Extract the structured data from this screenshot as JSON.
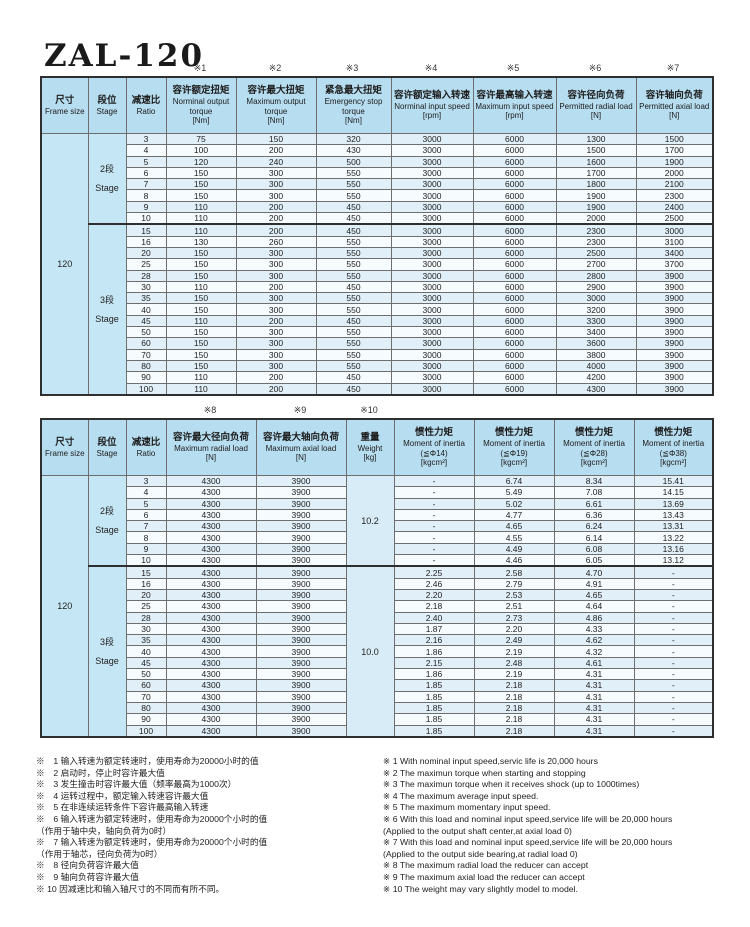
{
  "page": {
    "title": "ZAL-120"
  },
  "colors": {
    "header_bg": "#b7ddf0",
    "merged_bg": "#c5e6f5",
    "weight_bg": "#d8ecf8",
    "band_odd": "#e0eff8",
    "band_even": "#f6fbfe",
    "border": "#2f2f2f"
  },
  "table1": {
    "name": "ratings-table",
    "refs": [
      "※1",
      "※2",
      "※3",
      "※4",
      "※5",
      "※6",
      "※7"
    ],
    "frame_size": "120",
    "columns": [
      {
        "cn": "尺寸",
        "en": "Frame size",
        "unit": ""
      },
      {
        "cn": "段位",
        "en": "Stage",
        "unit": ""
      },
      {
        "cn": "减速比",
        "en": "Ratio",
        "unit": ""
      },
      {
        "cn": "容许额定扭矩",
        "en": "Norminal output torque",
        "unit": "[Nm]"
      },
      {
        "cn": "容许最大扭矩",
        "en": "Maximum output torque",
        "unit": "[Nm]"
      },
      {
        "cn": "紧急最大扭矩",
        "en": "Emergency stop torque",
        "unit": "[Nm]"
      },
      {
        "cn": "容许额定输入转速",
        "en": "Norminal input speed",
        "unit": "[rpm]"
      },
      {
        "cn": "容许最高输入转速",
        "en": "Maximum input speed",
        "unit": "[rpm]"
      },
      {
        "cn": "容许径向负荷",
        "en": "Permitted radial load",
        "unit": "[N]"
      },
      {
        "cn": "容许轴向负荷",
        "en": "Permitted axial load",
        "unit": "[N]"
      }
    ],
    "groups": [
      {
        "stage_cn": "2段",
        "stage_en": "Stage",
        "rows": [
          [
            "3",
            "75",
            "150",
            "320",
            "3000",
            "6000",
            "1300",
            "1500"
          ],
          [
            "4",
            "100",
            "200",
            "430",
            "3000",
            "6000",
            "1500",
            "1700"
          ],
          [
            "5",
            "120",
            "240",
            "500",
            "3000",
            "6000",
            "1600",
            "1900"
          ],
          [
            "6",
            "150",
            "300",
            "550",
            "3000",
            "6000",
            "1700",
            "2000"
          ],
          [
            "7",
            "150",
            "300",
            "550",
            "3000",
            "6000",
            "1800",
            "2100"
          ],
          [
            "8",
            "150",
            "300",
            "550",
            "3000",
            "6000",
            "1900",
            "2300"
          ],
          [
            "9",
            "110",
            "200",
            "450",
            "3000",
            "6000",
            "1900",
            "2400"
          ],
          [
            "10",
            "110",
            "200",
            "450",
            "3000",
            "6000",
            "2000",
            "2500"
          ]
        ]
      },
      {
        "stage_cn": "3段",
        "stage_en": "Stage",
        "rows": [
          [
            "15",
            "110",
            "200",
            "450",
            "3000",
            "6000",
            "2300",
            "3000"
          ],
          [
            "16",
            "130",
            "260",
            "550",
            "3000",
            "6000",
            "2300",
            "3100"
          ],
          [
            "20",
            "150",
            "300",
            "550",
            "3000",
            "6000",
            "2500",
            "3400"
          ],
          [
            "25",
            "150",
            "300",
            "550",
            "3000",
            "6000",
            "2700",
            "3700"
          ],
          [
            "28",
            "150",
            "300",
            "550",
            "3000",
            "6000",
            "2800",
            "3900"
          ],
          [
            "30",
            "110",
            "200",
            "450",
            "3000",
            "6000",
            "2900",
            "3900"
          ],
          [
            "35",
            "150",
            "300",
            "550",
            "3000",
            "6000",
            "3000",
            "3900"
          ],
          [
            "40",
            "150",
            "300",
            "550",
            "3000",
            "6000",
            "3200",
            "3900"
          ],
          [
            "45",
            "110",
            "200",
            "450",
            "3000",
            "6000",
            "3300",
            "3900"
          ],
          [
            "50",
            "150",
            "300",
            "550",
            "3000",
            "6000",
            "3400",
            "3900"
          ],
          [
            "60",
            "150",
            "300",
            "550",
            "3000",
            "6000",
            "3600",
            "3900"
          ],
          [
            "70",
            "150",
            "300",
            "550",
            "3000",
            "6000",
            "3800",
            "3900"
          ],
          [
            "80",
            "150",
            "300",
            "550",
            "3000",
            "6000",
            "4000",
            "3900"
          ],
          [
            "90",
            "110",
            "200",
            "450",
            "3000",
            "6000",
            "4200",
            "3900"
          ],
          [
            "100",
            "110",
            "200",
            "450",
            "3000",
            "6000",
            "4300",
            "3900"
          ]
        ]
      }
    ]
  },
  "table2": {
    "name": "load-weight-inertia-table",
    "refs": [
      "※8",
      "※9",
      "※10"
    ],
    "frame_size": "120",
    "columns": [
      {
        "cn": "尺寸",
        "en": "Frame size",
        "unit": ""
      },
      {
        "cn": "段位",
        "en": "Stage",
        "unit": ""
      },
      {
        "cn": "减速比",
        "en": "Ratio",
        "unit": ""
      },
      {
        "cn": "容许最大径向负荷",
        "en": "Maximum radial load",
        "unit": "[N]"
      },
      {
        "cn": "容许最大轴向负荷",
        "en": "Maximum axial load",
        "unit": "[N]"
      },
      {
        "cn": "重量",
        "en": "Weight",
        "unit": "[kg]"
      },
      {
        "cn": "惯性力矩",
        "en": "Moment of inertia",
        "sub": "(≦Φ14)",
        "unit": "[kgcm²]"
      },
      {
        "cn": "惯性力矩",
        "en": "Moment of inertia",
        "sub": "(≦Φ19)",
        "unit": "[kgcm²]"
      },
      {
        "cn": "惯性力矩",
        "en": "Moment of inertia",
        "sub": "(≦Φ28)",
        "unit": "[kgcm²]"
      },
      {
        "cn": "惯性力矩",
        "en": "Moment of inertia",
        "sub": "(≦Φ38)",
        "unit": "[kgcm²]"
      }
    ],
    "groups": [
      {
        "stage_cn": "2段",
        "stage_en": "Stage",
        "weight": "10.2",
        "rows": [
          [
            "3",
            "4300",
            "3900",
            "-",
            "6.74",
            "8.34",
            "15.41"
          ],
          [
            "4",
            "4300",
            "3900",
            "-",
            "5.49",
            "7.08",
            "14.15"
          ],
          [
            "5",
            "4300",
            "3900",
            "-",
            "5.02",
            "6.61",
            "13.69"
          ],
          [
            "6",
            "4300",
            "3900",
            "-",
            "4.77",
            "6.36",
            "13.43"
          ],
          [
            "7",
            "4300",
            "3900",
            "-",
            "4.65",
            "6.24",
            "13.31"
          ],
          [
            "8",
            "4300",
            "3900",
            "-",
            "4.55",
            "6.14",
            "13.22"
          ],
          [
            "9",
            "4300",
            "3900",
            "-",
            "4.49",
            "6.08",
            "13.16"
          ],
          [
            "10",
            "4300",
            "3900",
            "-",
            "4.46",
            "6.05",
            "13.12"
          ]
        ]
      },
      {
        "stage_cn": "3段",
        "stage_en": "Stage",
        "weight": "10.0",
        "rows": [
          [
            "15",
            "4300",
            "3900",
            "2.25",
            "2.58",
            "4.70",
            "-"
          ],
          [
            "16",
            "4300",
            "3900",
            "2.46",
            "2.79",
            "4.91",
            "-"
          ],
          [
            "20",
            "4300",
            "3900",
            "2.20",
            "2.53",
            "4.65",
            "-"
          ],
          [
            "25",
            "4300",
            "3900",
            "2.18",
            "2.51",
            "4.64",
            "-"
          ],
          [
            "28",
            "4300",
            "3900",
            "2.40",
            "2.73",
            "4.86",
            "-"
          ],
          [
            "30",
            "4300",
            "3900",
            "1.87",
            "2.20",
            "4.33",
            "-"
          ],
          [
            "35",
            "4300",
            "3900",
            "2.16",
            "2.49",
            "4.62",
            "-"
          ],
          [
            "40",
            "4300",
            "3900",
            "1.86",
            "2.19",
            "4.32",
            "-"
          ],
          [
            "45",
            "4300",
            "3900",
            "2.15",
            "2.48",
            "4.61",
            "-"
          ],
          [
            "50",
            "4300",
            "3900",
            "1.86",
            "2.19",
            "4.31",
            "-"
          ],
          [
            "60",
            "4300",
            "3900",
            "1.85",
            "2.18",
            "4.31",
            "-"
          ],
          [
            "70",
            "4300",
            "3900",
            "1.85",
            "2.18",
            "4.31",
            "-"
          ],
          [
            "80",
            "4300",
            "3900",
            "1.85",
            "2.18",
            "4.31",
            "-"
          ],
          [
            "90",
            "4300",
            "3900",
            "1.85",
            "2.18",
            "4.31",
            "-"
          ],
          [
            "100",
            "4300",
            "3900",
            "1.85",
            "2.18",
            "4.31",
            "-"
          ]
        ]
      }
    ]
  },
  "footnotes": {
    "cn": [
      "※　1 输入转速为额定转速时，使用寿命为20000小时的值",
      "※　2 启动时，停止时容许最大值",
      "※　3 发生撞击时容许最大值（频率最高为1000次）",
      "※　4 运转过程中，额定输入转速容许最大值",
      "※　5 在非连续运转条件下容许最高输入转速",
      "※　6 输入转速为额定转速时，使用寿命为20000个小时的值",
      "（作用于轴中央，轴向负荷为0时）",
      "※　7 输入转速为额定转速时，使用寿命为20000个小时的值",
      "（作用于轴芯，径向负荷为0时）",
      "※　8 径向负荷容许最大值",
      "※　9 轴向负荷容许最大值",
      "※ 10 因减速比和输入轴尺寸的不同而有所不同。"
    ],
    "en": [
      "※ 1 With nominal input speed,servic life is 20,000 hours",
      "※ 2 The maximun torque when starting and stopping",
      "※ 3 The maximun torque when it receives shock (up to 1000times)",
      "※ 4 The maximum average input speed.",
      "※ 5 The maximum momentary input speed.",
      "※ 6 With this load and nominal input speed,service life will be 20,000 hours",
      "  (Applied to the output shaft center,at axial load 0)",
      "※ 7 With this load and nominal input speed,service life will be 20,000 hours",
      "  (Applied to the output side bearing,at radial load 0)",
      "※ 8 The maximum radial load the reducer can accept",
      "※ 9 The maximum axial load the reducer can accept",
      "※ 10 The weight may vary  slightly  model to model."
    ]
  }
}
